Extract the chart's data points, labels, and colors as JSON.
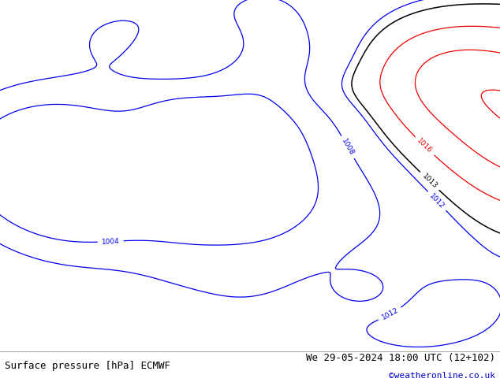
{
  "title_left": "Surface pressure [hPa] ECMWF",
  "title_right": "We 29-05-2024 18:00 UTC (12+102)",
  "credit": "©weatheronline.co.uk",
  "ocean_color": "#d4d4d4",
  "land_color": "#b8e0b8",
  "coast_color": "#888888",
  "map_lon_min": 85,
  "map_lon_max": 170,
  "map_lat_min": -18,
  "map_lat_max": 57,
  "blue_color": "#0000ee",
  "black_color": "#000000",
  "red_color": "#ee0000",
  "bottom_bar_color": "#ffffff",
  "text_color": "#000000",
  "credit_color": "#0000cc",
  "font_size_bottom": 9,
  "font_size_credit": 8
}
